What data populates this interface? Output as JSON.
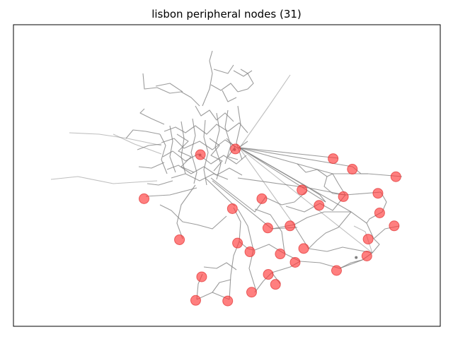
{
  "title": "lisbon peripheral nodes (31)",
  "colors": {
    "edge": "#808080",
    "node_fill": "#ff3b3b",
    "node_stroke": "#e03030",
    "frame": "#000000"
  },
  "chart_data": {
    "type": "network",
    "title": "lisbon peripheral nodes (31)",
    "grid": false,
    "axes_visible": false,
    "xlim": [
      0,
      100
    ],
    "ylim": [
      0,
      100
    ],
    "hubs": [
      {
        "id": "h1",
        "x": 43.7,
        "y": 56.8
      },
      {
        "id": "h2",
        "x": 51.8,
        "y": 58.6
      },
      {
        "id": "h3",
        "x": 80.3,
        "y": 22.8
      }
    ],
    "nodes": [
      {
        "id": "n1",
        "x": 43.8,
        "y": 56.9
      },
      {
        "id": "n2",
        "x": 52.0,
        "y": 58.8
      },
      {
        "id": "n3",
        "x": 74.9,
        "y": 55.6
      },
      {
        "id": "n4",
        "x": 79.4,
        "y": 52.1
      },
      {
        "id": "n5",
        "x": 89.6,
        "y": 49.6
      },
      {
        "id": "n6",
        "x": 30.6,
        "y": 42.3
      },
      {
        "id": "n7",
        "x": 67.6,
        "y": 45.2
      },
      {
        "id": "n8",
        "x": 77.3,
        "y": 43.0
      },
      {
        "id": "n9",
        "x": 85.4,
        "y": 44.1
      },
      {
        "id": "n10",
        "x": 58.2,
        "y": 42.3
      },
      {
        "id": "n11",
        "x": 51.3,
        "y": 39.0
      },
      {
        "id": "n12",
        "x": 71.6,
        "y": 40.1
      },
      {
        "id": "n13",
        "x": 85.8,
        "y": 37.6
      },
      {
        "id": "n14",
        "x": 89.2,
        "y": 33.3
      },
      {
        "id": "n15",
        "x": 64.8,
        "y": 33.3
      },
      {
        "id": "n16",
        "x": 59.6,
        "y": 32.6
      },
      {
        "id": "n17",
        "x": 38.9,
        "y": 28.7
      },
      {
        "id": "n18",
        "x": 52.5,
        "y": 27.6
      },
      {
        "id": "n19",
        "x": 83.1,
        "y": 28.9
      },
      {
        "id": "n20",
        "x": 68.0,
        "y": 25.8
      },
      {
        "id": "n21",
        "x": 55.4,
        "y": 24.7
      },
      {
        "id": "n22",
        "x": 62.5,
        "y": 24.0
      },
      {
        "id": "n23",
        "x": 82.8,
        "y": 23.3
      },
      {
        "id": "n24",
        "x": 66.0,
        "y": 21.2
      },
      {
        "id": "n25",
        "x": 75.7,
        "y": 18.5
      },
      {
        "id": "n26",
        "x": 44.1,
        "y": 16.4
      },
      {
        "id": "n27",
        "x": 59.7,
        "y": 17.2
      },
      {
        "id": "n28",
        "x": 61.4,
        "y": 13.9
      },
      {
        "id": "n29",
        "x": 55.8,
        "y": 11.3
      },
      {
        "id": "n30",
        "x": 42.7,
        "y": 8.6
      },
      {
        "id": "n31",
        "x": 50.2,
        "y": 8.4
      }
    ]
  }
}
